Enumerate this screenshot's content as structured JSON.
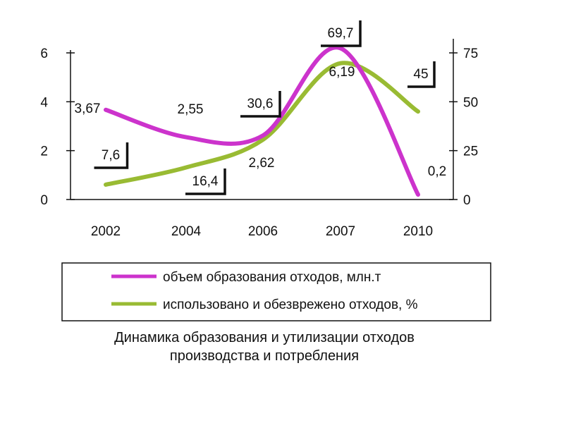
{
  "chart_data": {
    "type": "line",
    "categories": [
      "2002",
      "2004",
      "2006",
      "2007",
      "2010"
    ],
    "series": [
      {
        "name": "объем образования отходов, млн.т",
        "axis": "left",
        "color": "#cc33cc",
        "values": [
          3.67,
          2.55,
          2.62,
          6.19,
          0.2
        ],
        "labels": [
          "3,67",
          "2,55",
          "2,62",
          "6,19",
          "0,2"
        ]
      },
      {
        "name": "использовано и обезврежено отходов, %",
        "axis": "right",
        "color": "#99bb33",
        "values": [
          7.6,
          16.4,
          30.6,
          69.7,
          45
        ],
        "labels": [
          "7,6",
          "16,4",
          "30,6",
          "69,7",
          "45"
        ]
      }
    ],
    "y_left": {
      "range": [
        0,
        6
      ],
      "ticks": [
        "0",
        "2",
        "4",
        "6"
      ]
    },
    "y_right": {
      "range": [
        0,
        75
      ],
      "ticks": [
        "0",
        "25",
        "50",
        "75"
      ]
    },
    "legend": {
      "position": "bottom",
      "items": [
        "объем образования отходов, млн.т",
        "использовано и обезврежено отходов, %"
      ]
    },
    "caption": [
      "Динамика образования и утилизации отходов",
      "производства и потребления"
    ],
    "grid": false
  }
}
